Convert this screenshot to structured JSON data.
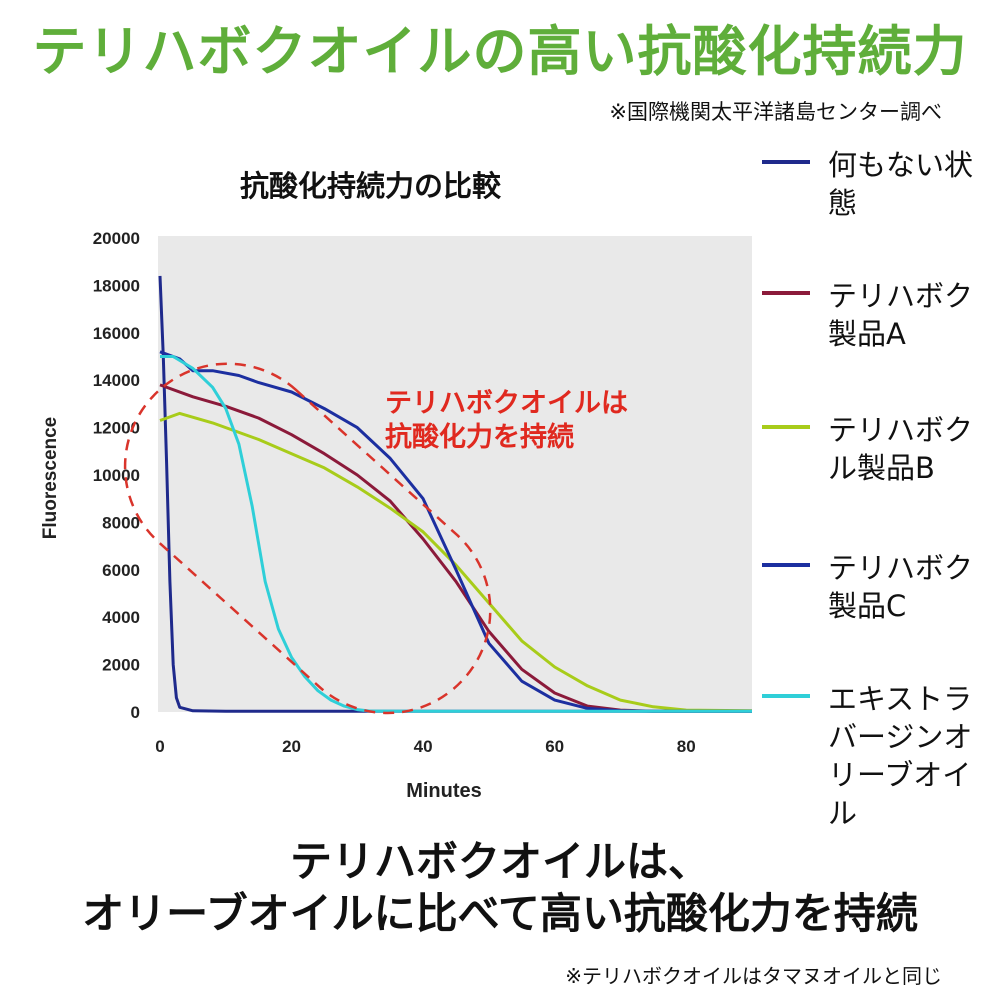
{
  "header": {
    "title": "テリハボクオイルの高い抗酸化持続力",
    "source": "※国際機関太平洋諸島センター調べ"
  },
  "chart_data": {
    "type": "line",
    "title": "抗酸化持続力の比較",
    "xlabel": "Minutes",
    "ylabel": "Fluorescence",
    "xlim": [
      0,
      90
    ],
    "ylim": [
      0,
      20000
    ],
    "x_ticks": [
      "0",
      "20",
      "40",
      "60",
      "80"
    ],
    "y_ticks": [
      "0",
      "2000",
      "4000",
      "6000",
      "8000",
      "10000",
      "12000",
      "14000",
      "16000",
      "18000",
      "20000"
    ],
    "grid": false,
    "legend_position": "right",
    "annotation": "テリハボクオイルは\n抗酸化力を持続",
    "series": [
      {
        "name": "何もない状態",
        "color": "#1f2a8c",
        "points": [
          [
            0,
            18400
          ],
          [
            0.5,
            15000
          ],
          [
            1,
            10500
          ],
          [
            1.5,
            5500
          ],
          [
            2,
            2000
          ],
          [
            2.5,
            600
          ],
          [
            3,
            200
          ],
          [
            5,
            50
          ],
          [
            10,
            30
          ],
          [
            30,
            30
          ],
          [
            60,
            30
          ],
          [
            90,
            30
          ]
        ]
      },
      {
        "name": "テリハボク製品A",
        "color": "#8b1a3a",
        "points": [
          [
            0,
            13800
          ],
          [
            5,
            13300
          ],
          [
            10,
            12900
          ],
          [
            15,
            12400
          ],
          [
            20,
            11700
          ],
          [
            25,
            10900
          ],
          [
            30,
            10000
          ],
          [
            35,
            8900
          ],
          [
            40,
            7300
          ],
          [
            45,
            5500
          ],
          [
            50,
            3400
          ],
          [
            55,
            1800
          ],
          [
            60,
            800
          ],
          [
            65,
            250
          ],
          [
            70,
            80
          ],
          [
            75,
            30
          ],
          [
            90,
            30
          ]
        ]
      },
      {
        "name": "テリハボクル製品B",
        "color": "#a8cc1a",
        "points": [
          [
            0,
            12300
          ],
          [
            3,
            12600
          ],
          [
            8,
            12200
          ],
          [
            15,
            11500
          ],
          [
            20,
            10900
          ],
          [
            25,
            10300
          ],
          [
            30,
            9500
          ],
          [
            35,
            8600
          ],
          [
            40,
            7600
          ],
          [
            45,
            6200
          ],
          [
            50,
            4600
          ],
          [
            55,
            3000
          ],
          [
            60,
            1900
          ],
          [
            65,
            1100
          ],
          [
            70,
            500
          ],
          [
            75,
            220
          ],
          [
            80,
            80
          ],
          [
            90,
            50
          ]
        ]
      },
      {
        "name": "テリハボク製品C",
        "color": "#1c2fa0",
        "points": [
          [
            0,
            15200
          ],
          [
            3,
            14900
          ],
          [
            5,
            14400
          ],
          [
            8,
            14400
          ],
          [
            12,
            14200
          ],
          [
            15,
            13900
          ],
          [
            20,
            13500
          ],
          [
            25,
            12800
          ],
          [
            30,
            12000
          ],
          [
            35,
            10700
          ],
          [
            40,
            9000
          ],
          [
            45,
            6000
          ],
          [
            50,
            2900
          ],
          [
            55,
            1300
          ],
          [
            60,
            500
          ],
          [
            65,
            150
          ],
          [
            70,
            50
          ],
          [
            75,
            30
          ],
          [
            90,
            30
          ]
        ]
      },
      {
        "name": "エキストラバージンオリーブオイル",
        "color": "#2fcfd8",
        "points": [
          [
            0,
            15000
          ],
          [
            2,
            15000
          ],
          [
            5,
            14500
          ],
          [
            8,
            13700
          ],
          [
            10,
            12800
          ],
          [
            12,
            11300
          ],
          [
            14,
            8700
          ],
          [
            16,
            5500
          ],
          [
            18,
            3500
          ],
          [
            20,
            2300
          ],
          [
            22,
            1500
          ],
          [
            24,
            900
          ],
          [
            26,
            500
          ],
          [
            28,
            250
          ],
          [
            30,
            100
          ],
          [
            32,
            40
          ],
          [
            40,
            30
          ],
          [
            60,
            30
          ],
          [
            90,
            30
          ]
        ]
      }
    ]
  },
  "legend": {
    "items": [
      {
        "label": "何もない状\n態",
        "color": "#1f2a8c"
      },
      {
        "label": "テリハボク\n製品A",
        "color": "#8b1a3a"
      },
      {
        "label": "テリハボク\nル製品B",
        "color": "#a8cc1a"
      },
      {
        "label": "テリハボク\n製品C",
        "color": "#1c2fa0"
      },
      {
        "label": "エキストラ\nバージンオ\nリーブオイル",
        "color": "#2fcfd8"
      }
    ]
  },
  "conclusion": {
    "line1": "テリハボクオイルは、",
    "line2": "オリーブオイルに比べて高い抗酸化力を持続"
  },
  "footnote": "※テリハボクオイルはタマヌオイルと同じ"
}
